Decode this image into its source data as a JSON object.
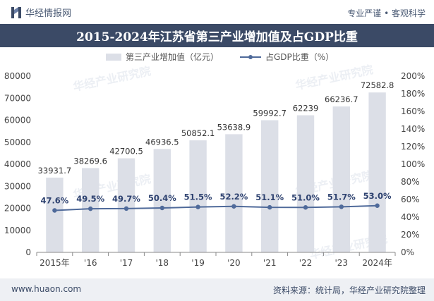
{
  "header": {
    "brand": "华经情报网",
    "slogan": "专业严谨 • 客观科学"
  },
  "footer": {
    "website": "www.huaon.com",
    "source": "资料来源：统计局，华经产业研究院整理"
  },
  "colors": {
    "bar": "#dcdfe7",
    "line": "#4f6a9a",
    "title_bg": "#3b4a66",
    "footer_bg": "#eef0f4"
  },
  "chart_data": {
    "type": "bar",
    "title": "2015-2024年江苏省第三产业增加值及占GDP比重",
    "categories": [
      "2015年",
      "'16",
      "'17",
      "'18",
      "'19",
      "'20",
      "'21",
      "'22",
      "'23",
      "2024年"
    ],
    "series": [
      {
        "name": "第三产业增加值（亿元）",
        "type": "bar",
        "axis": "left",
        "values": [
          33931.7,
          38269.6,
          42700.5,
          46936.5,
          50852.1,
          53638.9,
          59992.7,
          62239,
          66236.7,
          72582.8
        ],
        "labels": [
          "33931.7",
          "38269.6",
          "42700.5",
          "46936.5",
          "50852.1",
          "53638.9",
          "59992.7",
          "62239",
          "66236.7",
          "72582.8"
        ]
      },
      {
        "name": "占GDP比重（%）",
        "type": "line",
        "axis": "right",
        "values": [
          47.6,
          49.5,
          49.7,
          50.4,
          51.5,
          52.2,
          51.1,
          51.0,
          51.7,
          53.0
        ],
        "labels": [
          "47.6%",
          "49.5%",
          "49.7%",
          "50.4%",
          "51.5%",
          "52.2%",
          "51.1%",
          "51.0%",
          "51.7%",
          "53.0%"
        ]
      }
    ],
    "y_left": {
      "min": 0,
      "max": 80000,
      "ticks": [
        0,
        10000,
        20000,
        30000,
        40000,
        50000,
        60000,
        70000,
        80000
      ],
      "tick_labels": [
        "0",
        "10000",
        "20000",
        "30000",
        "40000",
        "50000",
        "60000",
        "70000",
        "80000"
      ]
    },
    "y_right": {
      "min": 0,
      "max": 200,
      "ticks": [
        0,
        20,
        40,
        60,
        80,
        100,
        120,
        140,
        160,
        180,
        200
      ],
      "tick_labels": [
        "0%",
        "20%",
        "40%",
        "60%",
        "80%",
        "100%",
        "120%",
        "140%",
        "160%",
        "180%",
        "200%"
      ]
    },
    "legend_position": "top",
    "grid": false,
    "watermark": "华经产业研究院"
  }
}
